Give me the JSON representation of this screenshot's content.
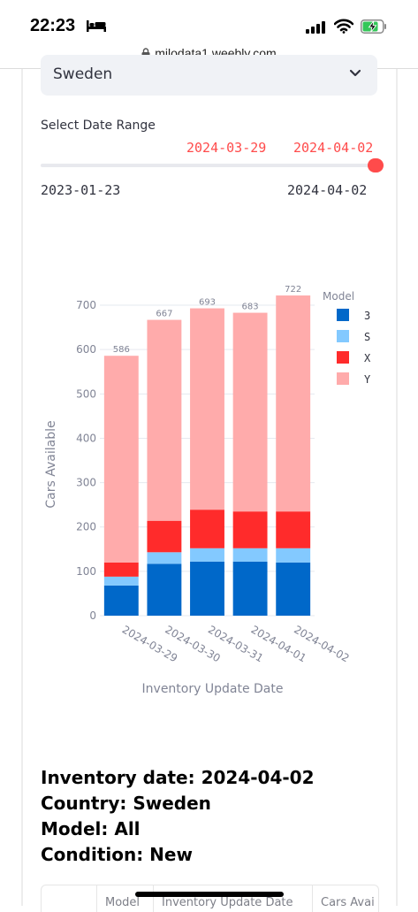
{
  "status_bar": {
    "time": "22:23"
  },
  "browser": {
    "url": "milodata1.weebly.com"
  },
  "country_select": {
    "value": "Sweden"
  },
  "date_range": {
    "label": "Select Date Range",
    "selected_start": "2024-03-29",
    "selected_end": "2024-04-02",
    "min": "2023-01-23",
    "max": "2024-04-02",
    "position": 1.0
  },
  "chart_data": {
    "type": "bar",
    "stacked": true,
    "categories": [
      "2024-03-29",
      "2024-03-30",
      "2024-03-31",
      "2024-04-01",
      "2024-04-02"
    ],
    "series": [
      {
        "name": "3",
        "values": [
          68,
          117,
          122,
          122,
          120
        ],
        "color": "#0068c9"
      },
      {
        "name": "S",
        "values": [
          20,
          26,
          30,
          30,
          32
        ],
        "color": "#83c9ff"
      },
      {
        "name": "X",
        "values": [
          32,
          71,
          87,
          83,
          83
        ],
        "color": "#ff2b2b"
      },
      {
        "name": "Y",
        "values": [
          466,
          453,
          454,
          448,
          487
        ],
        "color": "#ffabab"
      }
    ],
    "totals": [
      "586",
      "667",
      "693",
      "683",
      "722"
    ],
    "xlabel": "Inventory Update Date",
    "ylabel": "Cars Available",
    "legend_title": "Model",
    "legend_position": "top-right",
    "ylim": [
      0,
      730
    ],
    "yticks": [
      "0",
      "100",
      "200",
      "300",
      "400",
      "500",
      "600",
      "700"
    ],
    "grid": true
  },
  "info": {
    "line1": "Inventory date: 2024-04-02",
    "line2": "Country: Sweden",
    "line3": "Model: All",
    "line4": "Condition: New"
  },
  "table": {
    "headers": [
      "Model",
      "Inventory Update Date",
      "Cars Avai"
    ]
  }
}
